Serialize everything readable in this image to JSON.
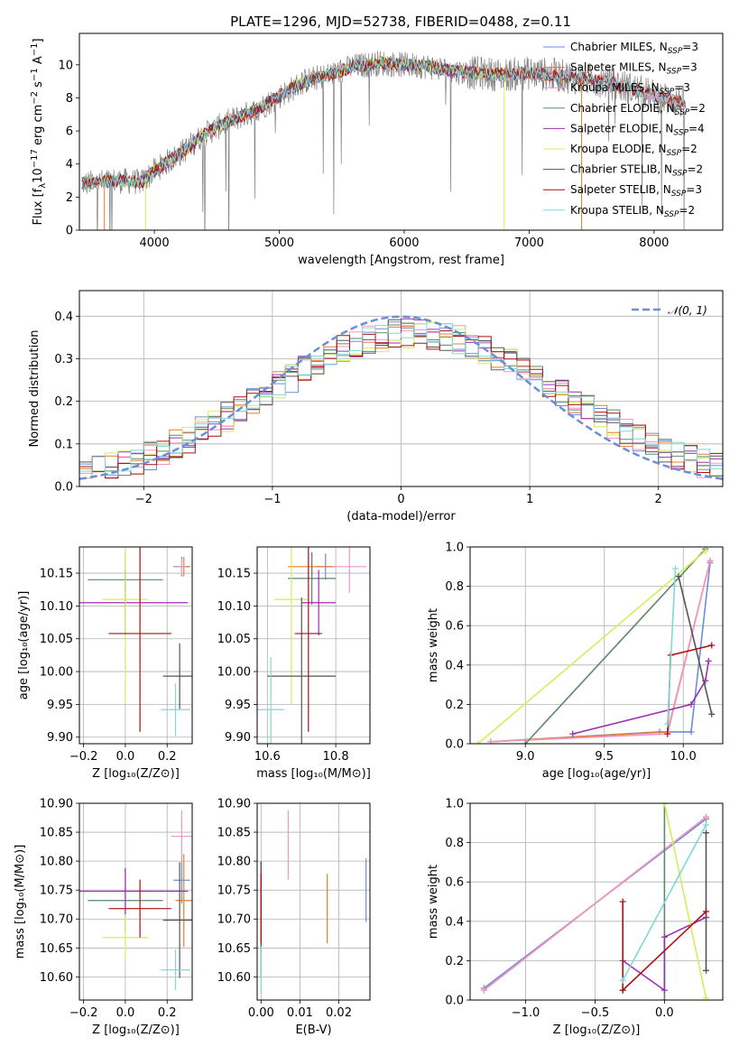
{
  "figure": {
    "title": "PLATE=1296, MJD=52738, FIBERID=0488, z=0.11"
  },
  "colors": {
    "data_spectrum": "#808080",
    "chabrier_miles": "#6b8ed8",
    "salpeter_miles": "#e87d2f",
    "kroupa_miles": "#f096c8",
    "chabrier_elodie": "#5a8a6a",
    "salpeter_elodie": "#9b30b0",
    "kroupa_elodie": "#d4ee5a",
    "chabrier_stelib": "#555555",
    "salpeter_stelib": "#aa1111",
    "kroupa_stelib": "#80d8d8",
    "normal_curve": "#6b8ed8"
  },
  "chart_data": [
    {
      "id": "spectrum",
      "type": "line",
      "title": "PLATE=1296, MJD=52738, FIBERID=0488, z=0.11",
      "xlabel": "wavelength [Angstrom, rest frame]",
      "ylabel": "Flux [f$_\\lambda$10$^{-17}$ erg cm$^{-2}$ s$^{-1}$ A$^{-1}$]",
      "ylabel_parts": {
        "base": "Flux [f",
        "sub1": "λ",
        "mid": "10",
        "sup1": "−17",
        "rest1": " erg cm",
        "sup2": "−2",
        "rest2": " s",
        "sup3": "−1",
        "rest3": " A",
        "sup4": "−1",
        "end": "]"
      },
      "xlim": [
        3400,
        8550
      ],
      "ylim": [
        0,
        11.9
      ],
      "xticks": [
        4000,
        5000,
        6000,
        7000,
        8000
      ],
      "yticks": [
        0,
        2,
        4,
        6,
        8,
        10
      ],
      "legend_location": "upper right",
      "legend": [
        {
          "label": "Chabrier MILES, N",
          "sub": "SSP",
          "suffix": "=3",
          "color_key": "chabrier_miles"
        },
        {
          "label": "Salpeter MILES, N",
          "sub": "SSP",
          "suffix": "=3",
          "color_key": "salpeter_miles"
        },
        {
          "label": "Kroupa MILES, N",
          "sub": "SSP",
          "suffix": "=3",
          "color_key": "kroupa_miles"
        },
        {
          "label": "Chabrier ELODIE, N",
          "sub": "SSP",
          "suffix": "=2",
          "color_key": "chabrier_elodie"
        },
        {
          "label": "Salpeter ELODIE, N",
          "sub": "SSP",
          "suffix": "=4",
          "color_key": "salpeter_elodie"
        },
        {
          "label": "Kroupa ELODIE, N",
          "sub": "SSP",
          "suffix": "=2",
          "color_key": "kroupa_elodie"
        },
        {
          "label": "Chabrier STELIB, N",
          "sub": "SSP",
          "suffix": "=2",
          "color_key": "chabrier_stelib"
        },
        {
          "label": "Salpeter STELIB, N",
          "sub": "SSP",
          "suffix": "=3",
          "color_key": "salpeter_stelib"
        },
        {
          "label": "Kroupa STELIB, N",
          "sub": "SSP",
          "suffix": "=2",
          "color_key": "kroupa_stelib"
        }
      ],
      "continuum_anchor": {
        "x": [
          3420,
          3700,
          3900,
          4000,
          4200,
          4400,
          4600,
          4800,
          5000,
          5200,
          5400,
          5600,
          5800,
          6000,
          6200,
          6400,
          6600,
          6800,
          7000,
          7200,
          7400,
          7600,
          7800,
          8000,
          8250
        ],
        "y": [
          2.8,
          3.0,
          2.9,
          3.6,
          4.6,
          5.8,
          6.6,
          7.2,
          8.1,
          9.0,
          9.4,
          9.9,
          10.1,
          10.0,
          9.9,
          9.6,
          9.5,
          9.4,
          9.5,
          9.4,
          9.2,
          9.0,
          8.6,
          8.1,
          7.7
        ]
      }
    },
    {
      "id": "residuals",
      "type": "line",
      "xlabel": "(data-model)/error",
      "ylabel": "Normed distribution",
      "xlim": [
        -2.5,
        2.5
      ],
      "ylim": [
        0,
        0.46
      ],
      "xticks": [
        -2,
        -1,
        0,
        1,
        2
      ],
      "yticks": [
        0.0,
        0.1,
        0.2,
        0.3,
        0.4
      ],
      "legend": [
        {
          "label": "𝒩(0, 1)",
          "color_key": "normal_curve"
        }
      ],
      "legend_location": "upper right"
    },
    {
      "id": "age-vs-z",
      "type": "scatter",
      "xlabel": "Z [log₁₀(Z/Z⊙)]",
      "ylabel": "age  [log₁₀(age/yr)]",
      "xlim": [
        -0.22,
        0.32
      ],
      "ylim": [
        9.89,
        10.19
      ],
      "xticks": [
        -0.2,
        0.0,
        0.2
      ],
      "yticks": [
        9.9,
        9.95,
        10.0,
        10.05,
        10.1,
        10.15
      ],
      "points": [
        {
          "series": "chabrier_miles",
          "x": 0.27,
          "y": 10.16,
          "xerr": 0.04,
          "yerr": 0.015
        },
        {
          "series": "salpeter_miles",
          "x": 0.28,
          "y": 10.16,
          "xerr": 0.03,
          "yerr": 0.015
        },
        {
          "series": "kroupa_miles",
          "x": 0.27,
          "y": 10.16,
          "xerr": 0.02,
          "yerr": 0.012
        },
        {
          "series": "chabrier_elodie",
          "x": 0.0,
          "y": 10.14,
          "xerr": 0.18,
          "yerr": 0.04
        },
        {
          "series": "salpeter_elodie",
          "x": 0.0,
          "y": 10.105,
          "xerr": 0.3,
          "yerr": 0.05
        },
        {
          "series": "kroupa_elodie",
          "x": 0.0,
          "y": 10.11,
          "xerr": 0.11,
          "yerr": 0.16
        },
        {
          "series": "chabrier_stelib",
          "x": 0.26,
          "y": 9.993,
          "xerr": 0.08,
          "yerr": 0.05
        },
        {
          "series": "salpeter_stelib",
          "x": 0.07,
          "y": 10.058,
          "xerr": 0.15,
          "yerr": 0.15
        },
        {
          "series": "kroupa_stelib",
          "x": 0.24,
          "y": 9.942,
          "xerr": 0.07,
          "yerr": 0.04
        }
      ]
    },
    {
      "id": "age-vs-mass",
      "type": "scatter",
      "xlabel": "mass [log₁₀(M/M⊙)]",
      "ylabel": "",
      "xlim": [
        10.57,
        10.9
      ],
      "ylim": [
        9.89,
        10.19
      ],
      "xticks": [
        10.6,
        10.8
      ],
      "yticks": [
        9.9,
        9.95,
        10.0,
        10.05,
        10.1,
        10.15
      ],
      "points": [
        {
          "series": "chabrier_miles",
          "x": 10.77,
          "y": 10.16,
          "xerr": 0.03,
          "yerr": 0.02
        },
        {
          "series": "salpeter_miles",
          "x": 10.73,
          "y": 10.16,
          "xerr": 0.07,
          "yerr": 0.02
        },
        {
          "series": "kroupa_miles",
          "x": 10.84,
          "y": 10.16,
          "xerr": 0.05,
          "yerr": 0.04
        },
        {
          "series": "chabrier_elodie",
          "x": 10.73,
          "y": 10.142,
          "xerr": 0.07,
          "yerr": 0.04
        },
        {
          "series": "salpeter_elodie",
          "x": 10.75,
          "y": 10.105,
          "xerr": 0.05,
          "yerr": 0.05
        },
        {
          "series": "kroupa_elodie",
          "x": 10.67,
          "y": 10.11,
          "xerr": 0.05,
          "yerr": 0.16
        },
        {
          "series": "chabrier_stelib",
          "x": 10.7,
          "y": 9.993,
          "xerr": 0.1,
          "yerr": 0.12
        },
        {
          "series": "salpeter_stelib",
          "x": 10.72,
          "y": 10.058,
          "xerr": 0.04,
          "yerr": 0.15
        },
        {
          "series": "kroupa_stelib",
          "x": 10.61,
          "y": 9.942,
          "xerr": 0.04,
          "yerr": 0.08
        }
      ]
    },
    {
      "id": "weight-vs-age",
      "type": "line",
      "xlabel": "age  [log₁₀(age/yr)]",
      "ylabel": "mass weight",
      "xlim": [
        8.65,
        10.25
      ],
      "ylim": [
        0,
        1.0
      ],
      "xticks": [
        9.0,
        9.5,
        10.0
      ],
      "yticks": [
        0.0,
        0.2,
        0.4,
        0.6,
        0.8,
        1.0
      ],
      "series": [
        {
          "name": "chabrier_miles",
          "x": [
            8.78,
            9.85,
            10.05,
            10.17
          ],
          "y": [
            0.01,
            0.06,
            0.06,
            0.92
          ]
        },
        {
          "name": "salpeter_miles",
          "x": [
            8.78,
            9.9,
            10.17
          ],
          "y": [
            0.01,
            0.06,
            0.93
          ]
        },
        {
          "name": "kroupa_miles",
          "x": [
            8.78,
            9.9,
            10.17
          ],
          "y": [
            0.01,
            0.05,
            0.93
          ]
        },
        {
          "name": "chabrier_elodie",
          "x": [
            9.0,
            10.14
          ],
          "y": [
            0.0,
            0.99
          ]
        },
        {
          "name": "salpeter_elodie",
          "x": [
            9.3,
            10.05,
            10.14,
            10.16
          ],
          "y": [
            0.05,
            0.2,
            0.32,
            0.42
          ]
        },
        {
          "name": "kroupa_elodie",
          "x": [
            8.7,
            10.14
          ],
          "y": [
            0.0,
            0.98
          ]
        },
        {
          "name": "chabrier_stelib",
          "x": [
            9.97,
            10.18
          ],
          "y": [
            0.85,
            0.15
          ]
        },
        {
          "name": "salpeter_stelib",
          "x": [
            9.9,
            9.92,
            10.18
          ],
          "y": [
            0.05,
            0.45,
            0.5
          ]
        },
        {
          "name": "kroupa_stelib",
          "x": [
            9.9,
            9.95
          ],
          "y": [
            0.1,
            0.89
          ]
        }
      ]
    },
    {
      "id": "mass-vs-z",
      "type": "scatter",
      "xlabel": "Z [log₁₀(Z/Z⊙)]",
      "ylabel": "mass [log₁₀(M/M⊙)]",
      "xlim": [
        -0.22,
        0.32
      ],
      "ylim": [
        10.56,
        10.9
      ],
      "xticks": [
        -0.2,
        0.0,
        0.2
      ],
      "yticks": [
        10.6,
        10.65,
        10.7,
        10.75,
        10.8,
        10.85,
        10.9
      ],
      "points": [
        {
          "series": "chabrier_miles",
          "x": 0.27,
          "y": 10.767,
          "xerr": 0.04,
          "yerr": 0.04
        },
        {
          "series": "salpeter_miles",
          "x": 0.28,
          "y": 10.732,
          "xerr": 0.04,
          "yerr": 0.08
        },
        {
          "series": "kroupa_miles",
          "x": 0.27,
          "y": 10.843,
          "xerr": 0.05,
          "yerr": 0.045
        },
        {
          "series": "chabrier_elodie",
          "x": 0.0,
          "y": 10.732,
          "xerr": 0.18,
          "yerr": 0.055
        },
        {
          "series": "salpeter_elodie",
          "x": 0.0,
          "y": 10.748,
          "xerr": 0.3,
          "yerr": 0.04
        },
        {
          "series": "kroupa_elodie",
          "x": 0.0,
          "y": 10.668,
          "xerr": 0.11,
          "yerr": 0.04
        },
        {
          "series": "chabrier_stelib",
          "x": 0.26,
          "y": 10.698,
          "xerr": 0.08,
          "yerr": 0.1
        },
        {
          "series": "salpeter_stelib",
          "x": 0.07,
          "y": 10.718,
          "xerr": 0.15,
          "yerr": 0.05
        },
        {
          "series": "kroupa_stelib",
          "x": 0.24,
          "y": 10.612,
          "xerr": 0.07,
          "yerr": 0.035
        }
      ]
    },
    {
      "id": "mass-vs-ebv",
      "type": "scatter",
      "xlabel": "E(B-V)",
      "ylabel": "",
      "xlim": [
        -0.001,
        0.028
      ],
      "ylim": [
        10.56,
        10.9
      ],
      "xticks": [
        0.0,
        0.01,
        0.02
      ],
      "yticks": [
        10.6,
        10.65,
        10.7,
        10.75,
        10.8,
        10.85,
        10.9
      ],
      "points": [
        {
          "series": "chabrier_miles",
          "x": 0.027,
          "y": 10.75,
          "xerr": 0.0,
          "yerr": 0.055
        },
        {
          "series": "salpeter_miles",
          "x": 0.017,
          "y": 10.718,
          "xerr": 0.0,
          "yerr": 0.06
        },
        {
          "series": "kroupa_miles",
          "x": 0.007,
          "y": 10.828,
          "xerr": 0.0,
          "yerr": 0.06
        },
        {
          "series": "chabrier_elodie",
          "x": 0.0,
          "y": 10.73,
          "xerr": 0.0,
          "yerr": 0.06
        },
        {
          "series": "salpeter_elodie",
          "x": 0.0,
          "y": 10.748,
          "xerr": 0.0,
          "yerr": 0.05
        },
        {
          "series": "kroupa_elodie",
          "x": 0.0,
          "y": 10.66,
          "xerr": 0.0,
          "yerr": 0.04
        },
        {
          "series": "chabrier_stelib",
          "x": 0.0,
          "y": 10.7,
          "xerr": 0.0,
          "yerr": 0.1
        },
        {
          "series": "salpeter_stelib",
          "x": 0.0,
          "y": 10.718,
          "xerr": 0.0,
          "yerr": 0.06
        },
        {
          "series": "kroupa_stelib",
          "x": 0.0,
          "y": 10.612,
          "xerr": 0.0,
          "yerr": 0.04
        }
      ]
    },
    {
      "id": "weight-vs-z",
      "type": "line",
      "xlabel": "Z [log₁₀(Z/Z⊙)]",
      "ylabel": "mass weight",
      "xlim": [
        -1.4,
        0.42
      ],
      "ylim": [
        0,
        1.0
      ],
      "xticks": [
        -1.0,
        -0.5,
        0.0
      ],
      "yticks": [
        0.0,
        0.2,
        0.4,
        0.6,
        0.8,
        1.0
      ],
      "series": [
        {
          "name": "chabrier_miles",
          "x": [
            -1.3,
            0.3
          ],
          "y": [
            0.06,
            0.92
          ]
        },
        {
          "name": "salpeter_miles",
          "x": [
            -1.3,
            0.3
          ],
          "y": [
            0.05,
            0.93
          ]
        },
        {
          "name": "kroupa_miles",
          "x": [
            -1.3,
            0.3
          ],
          "y": [
            0.05,
            0.93
          ]
        },
        {
          "name": "chabrier_elodie",
          "x": [
            0.0,
            0.0
          ],
          "y": [
            0.0,
            1.0
          ]
        },
        {
          "name": "salpeter_elodie",
          "x": [
            -0.3,
            0.0,
            0.0,
            0.3
          ],
          "y": [
            0.2,
            0.05,
            0.32,
            0.42
          ]
        },
        {
          "name": "kroupa_elodie",
          "x": [
            0.0,
            0.3
          ],
          "y": [
            1.0,
            0.01
          ]
        },
        {
          "name": "chabrier_stelib",
          "x": [
            0.3,
            0.3
          ],
          "y": [
            0.85,
            0.15
          ]
        },
        {
          "name": "salpeter_stelib",
          "x": [
            -0.3,
            -0.3,
            0.3,
            -0.3
          ],
          "y": [
            0.5,
            0.05,
            0.45,
            0.05
          ]
        },
        {
          "name": "kroupa_stelib",
          "x": [
            -0.3,
            0.3
          ],
          "y": [
            0.1,
            0.89
          ]
        }
      ]
    }
  ]
}
